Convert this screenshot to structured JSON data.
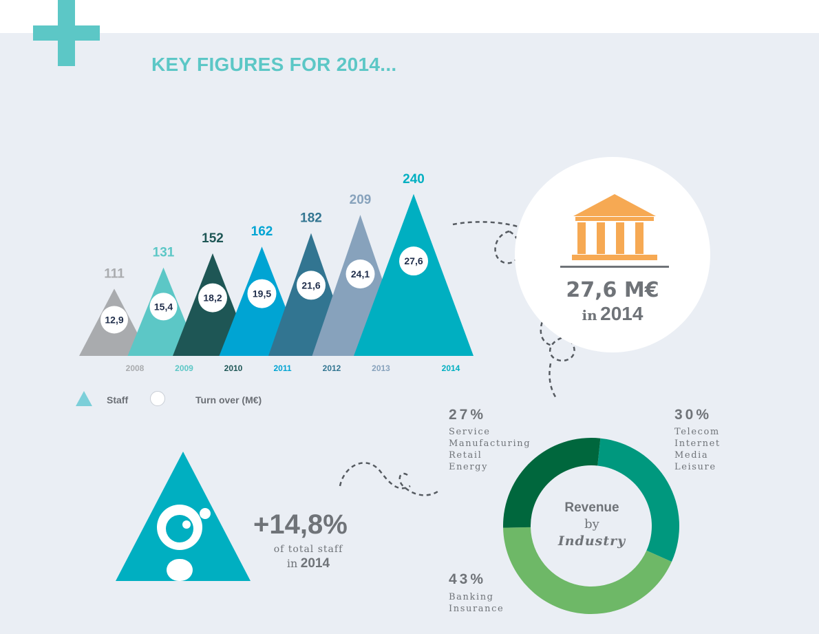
{
  "header": {
    "title": "KEY FIGURES FOR 2014..."
  },
  "chart_data": [
    {
      "type": "bar",
      "categories": [
        "2008",
        "2009",
        "2010",
        "2011",
        "2012",
        "2013",
        "2014"
      ],
      "series": [
        {
          "name": "Staff",
          "values": [
            111,
            131,
            152,
            162,
            182,
            209,
            240
          ]
        },
        {
          "name": "Turn over (M€)",
          "values": [
            "12,9",
            "15,4",
            "18,2",
            "19,5",
            "21,6",
            "24,1",
            "27,6"
          ]
        }
      ],
      "colors": [
        "#a9abae",
        "#5cc7c6",
        "#1e5655",
        "#00a4d3",
        "#327591",
        "#87a2bc",
        "#00afc1"
      ],
      "legend": [
        {
          "label": "Staff",
          "marker": "triangle",
          "color": "#7ccfd9"
        },
        {
          "label": "Turn over (M€)",
          "marker": "circle",
          "color": "#ffffff"
        }
      ],
      "legend_position": "bottom-left"
    },
    {
      "type": "pie",
      "title": [
        "Revenue",
        "by",
        "Industry"
      ],
      "donut": true,
      "slices": [
        {
          "value": 30,
          "label": "30%",
          "items": [
            "Telecom",
            "Internet",
            "Media",
            "Leisure"
          ],
          "color": "#00987e"
        },
        {
          "value": 43,
          "label": "43%",
          "items": [
            "Banking",
            "Insurance"
          ],
          "color": "#6eb867"
        },
        {
          "value": 27,
          "label": "27%",
          "items": [
            "Service",
            "Manufacturing",
            "Retail",
            "Energy"
          ],
          "color": "#00673d"
        }
      ]
    }
  ],
  "turnover_box": {
    "amount": "27,6 M€",
    "prefix": "in",
    "year": "2014",
    "icon": "bank-building-icon",
    "color": "#f6a953"
  },
  "staff_box": {
    "growth": "+14,8%",
    "line1": "of total staff",
    "prefix": "in",
    "year": "2014",
    "icon": "person-icon"
  }
}
